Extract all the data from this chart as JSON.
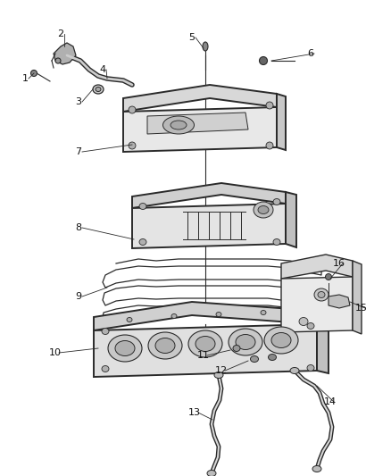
{
  "bg_color": "#ffffff",
  "fig_width": 4.38,
  "fig_height": 5.33,
  "dpi": 100,
  "line_color": "#2a2a2a",
  "label_fontsize": 7.5,
  "label_color": "#111111"
}
